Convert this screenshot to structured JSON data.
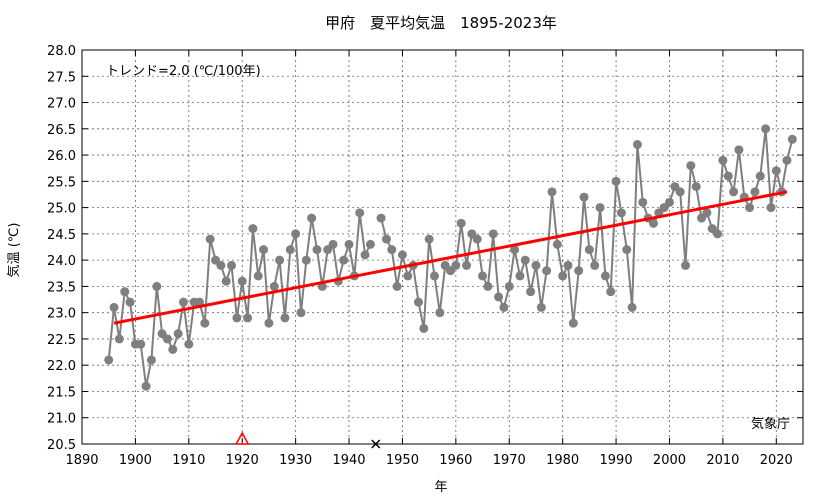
{
  "chart_data": {
    "type": "line",
    "title": "甲府　夏平均気温　1895-2023年",
    "xlabel": "年",
    "ylabel": "気温 (℃)",
    "xlim": [
      1890,
      2025
    ],
    "ylim": [
      20.5,
      28.0
    ],
    "x_ticks": [
      1890,
      1900,
      1910,
      1920,
      1930,
      1940,
      1950,
      1960,
      1970,
      1980,
      1990,
      2000,
      2010,
      2020
    ],
    "y_ticks": [
      20.5,
      21.0,
      21.5,
      22.0,
      22.5,
      23.0,
      23.5,
      24.0,
      24.5,
      25.0,
      25.5,
      26.0,
      26.5,
      27.0,
      27.5,
      28.0
    ],
    "grid": true,
    "trend_label": "トレンド=2.0 (℃/100年)",
    "source_label": "気象庁",
    "colors": {
      "series": "#7f7f7f",
      "trend": "#ff0000",
      "marker_triangle": "#ff0000",
      "marker_cross": "#000000"
    },
    "series": [
      {
        "x": [
          1895,
          1896,
          1897,
          1898,
          1899,
          1900,
          1901,
          1902,
          1903,
          1904,
          1905,
          1906,
          1907,
          1908,
          1909,
          1910,
          1911,
          1912,
          1913,
          1914,
          1915,
          1916,
          1917,
          1918,
          1919,
          1920,
          1921,
          1922,
          1923,
          1924,
          1925,
          1926,
          1927,
          1928,
          1929,
          1930,
          1931,
          1932,
          1933,
          1934,
          1935,
          1936,
          1937,
          1938,
          1939,
          1940,
          1941,
          1942,
          1943,
          1944,
          1945,
          1946,
          1947,
          1948,
          1949,
          1950,
          1951,
          1952,
          1953,
          1954,
          1955,
          1956,
          1957,
          1958,
          1959,
          1960,
          1961,
          1962,
          1963,
          1964,
          1965,
          1966,
          1967,
          1968,
          1969,
          1970,
          1971,
          1972,
          1973,
          1974,
          1975,
          1976,
          1977,
          1978,
          1979,
          1980,
          1981,
          1982,
          1983,
          1984,
          1985,
          1986,
          1987,
          1988,
          1989,
          1990,
          1991,
          1992,
          1993,
          1994,
          1995,
          1996,
          1997,
          1998,
          1999,
          2000,
          2001,
          2002,
          2003,
          2004,
          2005,
          2006,
          2007,
          2008,
          2009,
          2010,
          2011,
          2012,
          2013,
          2014,
          2015,
          2016,
          2017,
          2018,
          2019,
          2020,
          2021,
          2022,
          2023
        ],
        "values": [
          22.1,
          23.1,
          22.5,
          23.4,
          23.2,
          22.4,
          22.4,
          21.6,
          22.1,
          23.5,
          22.6,
          22.5,
          22.3,
          22.6,
          23.2,
          22.4,
          23.2,
          23.2,
          22.8,
          24.4,
          24.0,
          23.9,
          23.6,
          23.9,
          22.9,
          23.6,
          22.9,
          24.6,
          23.7,
          24.2,
          22.8,
          23.5,
          24.0,
          22.9,
          24.2,
          24.5,
          23.0,
          24.0,
          24.8,
          24.2,
          23.5,
          24.2,
          24.3,
          23.6,
          24.0,
          24.3,
          23.7,
          24.9,
          24.1,
          24.3,
          null,
          24.8,
          24.4,
          24.2,
          23.5,
          24.1,
          23.7,
          23.9,
          23.2,
          22.7,
          24.4,
          23.7,
          23.0,
          23.9,
          23.8,
          23.9,
          24.7,
          23.9,
          24.5,
          24.4,
          23.7,
          23.5,
          24.5,
          23.3,
          23.1,
          23.5,
          24.2,
          23.7,
          24.0,
          23.4,
          23.9,
          23.1,
          23.8,
          25.3,
          24.3,
          23.7,
          23.9,
          22.8,
          23.8,
          25.2,
          24.2,
          23.9,
          25.0,
          23.7,
          23.4,
          25.5,
          24.9,
          24.2,
          23.1,
          26.2,
          25.1,
          24.8,
          24.7,
          24.9,
          25.0,
          25.1,
          25.4,
          25.3,
          23.9,
          25.8,
          25.4,
          24.8,
          24.9,
          24.6,
          24.5,
          25.9,
          25.6,
          25.3,
          26.1,
          25.2,
          25.0,
          25.3,
          25.6,
          26.5,
          25.0,
          25.7,
          25.3,
          25.9,
          26.3
        ]
      }
    ],
    "trend": {
      "x": [
        1896,
        2022
      ],
      "y": [
        22.8,
        25.3
      ]
    },
    "markers": [
      {
        "shape": "triangle",
        "x": 1920,
        "y": 20.5
      },
      {
        "shape": "cross",
        "x": 1945,
        "y": 20.5
      }
    ]
  }
}
